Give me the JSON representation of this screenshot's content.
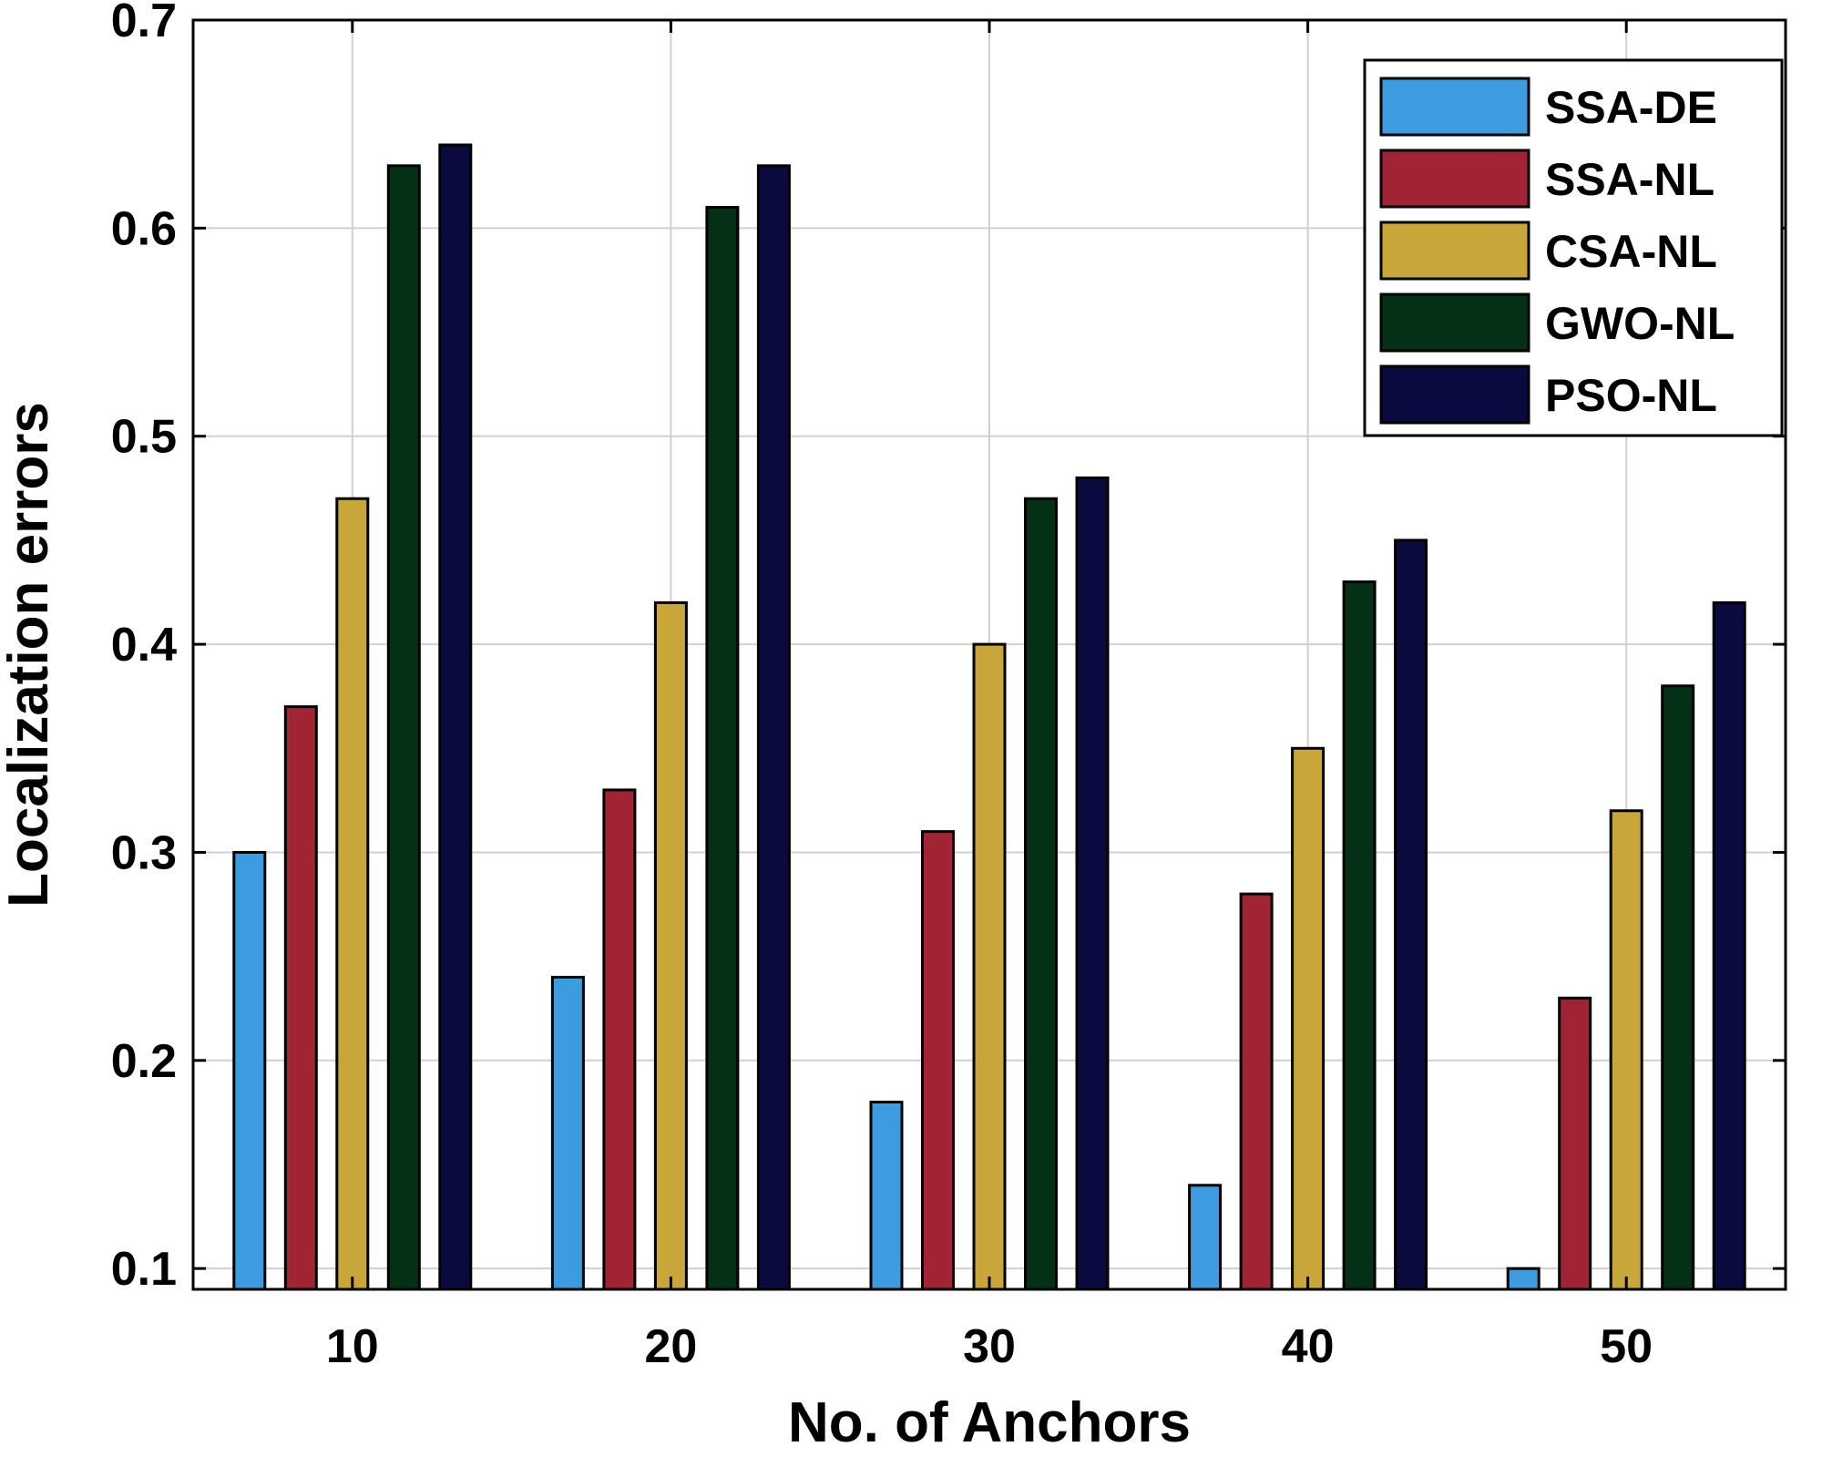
{
  "chart_data": {
    "type": "bar",
    "title": "",
    "xlabel": "No. of Anchors",
    "ylabel": "Localization errors",
    "categories": [
      "10",
      "20",
      "30",
      "40",
      "50"
    ],
    "ylim": [
      0.09,
      0.7
    ],
    "yticks": [
      "0.1",
      "0.2",
      "0.3",
      "0.4",
      "0.5",
      "0.6",
      "0.7"
    ],
    "ytick_values": [
      0.1,
      0.2,
      0.3,
      0.4,
      0.5,
      0.6,
      0.7
    ],
    "grid": true,
    "legend_position": "top-right",
    "series": [
      {
        "name": "SSA-DE",
        "color": "#3d9be0",
        "values": [
          0.3,
          0.24,
          0.18,
          0.14,
          0.1
        ]
      },
      {
        "name": "SSA-NL",
        "color": "#a02433",
        "values": [
          0.37,
          0.33,
          0.31,
          0.28,
          0.23
        ]
      },
      {
        "name": "CSA-NL",
        "color": "#c9a63a",
        "values": [
          0.47,
          0.42,
          0.4,
          0.35,
          0.32
        ]
      },
      {
        "name": "GWO-NL",
        "color": "#043015",
        "values": [
          0.63,
          0.61,
          0.47,
          0.43,
          0.38
        ]
      },
      {
        "name": "PSO-NL",
        "color": "#0b0a3f",
        "values": [
          0.64,
          0.63,
          0.48,
          0.45,
          0.42
        ]
      }
    ]
  }
}
